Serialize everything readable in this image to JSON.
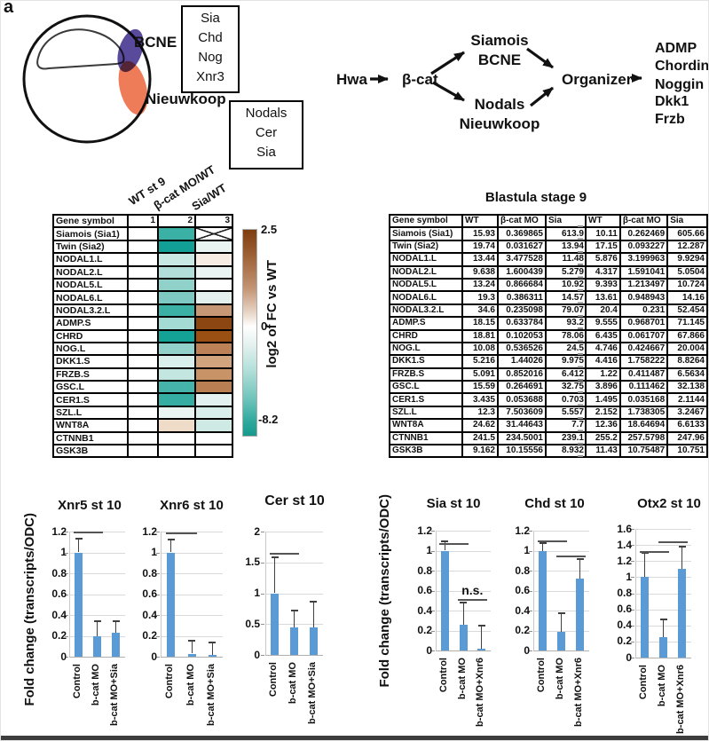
{
  "panel_label": "a",
  "embryo": {
    "bcne_label": "BCNE",
    "nieuwkoop_label": "Nieuwkoop",
    "bcne_box": [
      "Sia",
      "Chd",
      "Nog",
      "Xnr3"
    ],
    "nieuwkoop_box": [
      "Nodals",
      "Cer",
      "Sia"
    ],
    "colors": {
      "bcne": "#5a4a9c",
      "nieuwkoop": "#ee7c59"
    }
  },
  "pathway": {
    "hwa": "Hwa",
    "bcat": "β-cat",
    "siamois_line1": "Siamois",
    "siamois_line2": "BCNE",
    "nodals_line1": "Nodals",
    "nodals_line2": "Nieuwkoop",
    "organizer": "Organizer",
    "outputs": [
      "ADMP",
      "Chordin",
      "Noggin",
      "Dkk1",
      "Frzb"
    ]
  },
  "heatmap": {
    "rotated_headers": [
      "WT st 9",
      "β-cat MO/WT",
      "Sia/WT"
    ],
    "header_gene": "Gene symbol",
    "header_cols": [
      "1",
      "2",
      "3"
    ],
    "legend": {
      "max": "2.5",
      "mid": "0",
      "min": "-8.2",
      "label": "log2 of FC vs WT"
    },
    "rows": [
      {
        "gene": "Siamois (Sia1)",
        "c2": "#3bb0a5",
        "c3": "crossed"
      },
      {
        "gene": "Twin (Sia2)",
        "c2": "#12a096",
        "c3": "#e8f4f1"
      },
      {
        "gene": "NODAL1.L",
        "c2": "#c8e8e4",
        "c3": "#f6ece4"
      },
      {
        "gene": "NODAL2.L",
        "c2": "#b2ded9",
        "c3": "#e9f3f1"
      },
      {
        "gene": "NODAL5.L",
        "c2": "#90d1c9",
        "c3": "#ffffff"
      },
      {
        "gene": "NODAL6.L",
        "c2": "#7ec9c1",
        "c3": "#e3f0ee"
      },
      {
        "gene": "NODAL3.2.L",
        "c2": "#3bb0a5",
        "c3": "#c69875"
      },
      {
        "gene": "ADMP.S",
        "c2": "#a3dad3",
        "c3": "#8c4611"
      },
      {
        "gene": "CHRD",
        "c2": "#15a296",
        "c3": "#9a4f13"
      },
      {
        "gene": "NOG.L",
        "c2": "#92d1ca",
        "c3": "#bd8157"
      },
      {
        "gene": "DKK1.S",
        "c2": "#d9efec",
        "c3": "#d2a47d"
      },
      {
        "gene": "FRZB.S",
        "c2": "#c3e6e1",
        "c3": "#c89467"
      },
      {
        "gene": "GSC.L",
        "c2": "#45b3a9",
        "c3": "#b97f52"
      },
      {
        "gene": "CER1.S",
        "c2": "#35ada2",
        "c3": "#e2f1ef"
      },
      {
        "gene": "SZL.L",
        "c2": "#eaf5f3",
        "c3": "#d9eeea"
      },
      {
        "gene": "WNT8A",
        "c2": "#eedbc8",
        "c3": "#cfe9e5"
      },
      {
        "gene": "CTNNB1",
        "c2": "#ffffff",
        "c3": "#ffffff"
      },
      {
        "gene": "GSK3B",
        "c2": "#ffffff",
        "c3": "#ffffff"
      }
    ]
  },
  "expression_table": {
    "title": "Blastula stage 9",
    "gene_header": "Gene symbol",
    "col_headers": [
      "WT",
      "β-cat MO",
      "Sia"
    ],
    "rows": [
      {
        "gene": "Siamois (Sia1)",
        "a": [
          "15.93",
          "0.369865",
          "613.9"
        ],
        "b": [
          "10.11",
          "0.262469",
          "605.66"
        ]
      },
      {
        "gene": "Twin (Sia2)",
        "a": [
          "19.74",
          "0.031627",
          "13.94"
        ],
        "b": [
          "17.15",
          "0.093227",
          "12.287"
        ]
      },
      {
        "gene": "NODAL1.L",
        "a": [
          "13.44",
          "3.477528",
          "11.48"
        ],
        "b": [
          "5.876",
          "3.199963",
          "9.9294"
        ]
      },
      {
        "gene": "NODAL2.L",
        "a": [
          "9.638",
          "1.600439",
          "5.279"
        ],
        "b": [
          "4.317",
          "1.591041",
          "5.0504"
        ]
      },
      {
        "gene": "NODAL5.L",
        "a": [
          "13.24",
          "0.866684",
          "10.92"
        ],
        "b": [
          "9.393",
          "1.213497",
          "10.724"
        ]
      },
      {
        "gene": "NODAL6.L",
        "a": [
          "19.3",
          "0.386311",
          "14.57"
        ],
        "b": [
          "13.61",
          "0.948943",
          "14.16"
        ]
      },
      {
        "gene": "NODAL3.2.L",
        "a": [
          "34.6",
          "0.235098",
          "79.07"
        ],
        "b": [
          "20.4",
          "0.231",
          "52.454"
        ]
      },
      {
        "gene": "ADMP.S",
        "a": [
          "18.15",
          "0.633784",
          "93.2"
        ],
        "b": [
          "9.555",
          "0.968701",
          "71.145"
        ]
      },
      {
        "gene": "CHRD",
        "a": [
          "18.81",
          "0.102053",
          "78.06"
        ],
        "b": [
          "6.435",
          "0.061707",
          "67.866"
        ]
      },
      {
        "gene": "NOG.L",
        "a": [
          "10.08",
          "0.536526",
          "24.5"
        ],
        "b": [
          "4.746",
          "0.424667",
          "20.004"
        ]
      },
      {
        "gene": "DKK1.S",
        "a": [
          "5.216",
          "1.44026",
          "9.975"
        ],
        "b": [
          "4.416",
          "1.758222",
          "8.8264"
        ]
      },
      {
        "gene": "FRZB.S",
        "a": [
          "5.091",
          "0.852016",
          "6.412"
        ],
        "b": [
          "1.22",
          "0.411487",
          "6.5634"
        ]
      },
      {
        "gene": "GSC.L",
        "a": [
          "15.59",
          "0.264691",
          "32.75"
        ],
        "b": [
          "3.896",
          "0.111462",
          "32.138"
        ]
      },
      {
        "gene": "CER1.S",
        "a": [
          "3.435",
          "0.053688",
          "0.703"
        ],
        "b": [
          "1.495",
          "0.035168",
          "2.1144"
        ]
      },
      {
        "gene": "SZL.L",
        "a": [
          "12.3",
          "7.503609",
          "5.557"
        ],
        "b": [
          "2.152",
          "1.738305",
          "3.2467"
        ]
      },
      {
        "gene": "WNT8A",
        "a": [
          "24.62",
          "31.44643",
          "7.7"
        ],
        "b": [
          "12.36",
          "18.64694",
          "6.6133"
        ]
      },
      {
        "gene": "CTNNB1",
        "a": [
          "241.5",
          "234.5001",
          "239.1"
        ],
        "b": [
          "255.2",
          "257.5798",
          "247.96"
        ]
      },
      {
        "gene": "GSK3B",
        "a": [
          "9.162",
          "10.15556",
          "8.932"
        ],
        "b": [
          "11.43",
          "10.75487",
          "10.751"
        ]
      }
    ]
  },
  "charts": {
    "ylabel": "Fold change (transcripts/ODC)",
    "bar_color": "#5B9BD5"
  },
  "chart_data": [
    {
      "type": "bar",
      "title": "Xnr5 st 10",
      "categories": [
        "Control",
        "b-cat MO",
        "b-cat MO+Sia"
      ],
      "values": [
        1.0,
        0.2,
        0.23
      ],
      "errors": [
        0.13,
        0.14,
        0.11
      ],
      "ylim": [
        0,
        1.2
      ],
      "yticks": [
        0,
        0.2,
        0.4,
        0.6,
        0.8,
        1,
        1.2
      ],
      "ylabel": "Fold change (transcripts/ODC)",
      "sig": [
        {
          "from": 0,
          "to": 1,
          "y": 1.2,
          "label": ""
        }
      ]
    },
    {
      "type": "bar",
      "title": "Xnr6 st 10",
      "categories": [
        "Control",
        "b-cat MO",
        "b-cat MO+Sia"
      ],
      "values": [
        1.0,
        0.03,
        0.02
      ],
      "errors": [
        0.12,
        0.12,
        0.12
      ],
      "ylim": [
        0,
        1.2
      ],
      "yticks": [
        0,
        0.2,
        0.4,
        0.6,
        0.8,
        1,
        1.2
      ],
      "ylabel": "Fold change (transcripts/ODC)",
      "sig": [
        {
          "from": 0,
          "to": 1,
          "y": 1.19,
          "label": ""
        }
      ]
    },
    {
      "type": "bar",
      "title": "Cer st 10",
      "categories": [
        "Control",
        "b-cat MO",
        "b-cat MO+Sia"
      ],
      "values": [
        1.0,
        0.45,
        0.45
      ],
      "errors": [
        0.58,
        0.27,
        0.42
      ],
      "ylim": [
        0,
        2
      ],
      "yticks": [
        0,
        0.5,
        1,
        1.5,
        2
      ],
      "ylabel": "Fold change (transcripts/ODC)",
      "sig": [
        {
          "from": 0,
          "to": 1,
          "y": 1.65,
          "label": ""
        }
      ]
    },
    {
      "type": "bar",
      "title": "Sia st 10",
      "categories": [
        "Control",
        "b-cat MO",
        "b-cat MO+Xnr6"
      ],
      "values": [
        1.0,
        0.26,
        0.02
      ],
      "errors": [
        0.09,
        0.22,
        0.23
      ],
      "ylim": [
        0,
        1.2
      ],
      "yticks": [
        0,
        0.2,
        0.4,
        0.6,
        0.8,
        1,
        1.2
      ],
      "ylabel": "Fold change (transcripts/ODC)",
      "sig": [
        {
          "from": 0,
          "to": 1,
          "y": 1.08,
          "label": ""
        },
        {
          "from": 1,
          "to": 2,
          "y": 0.52,
          "label": "n.s."
        }
      ]
    },
    {
      "type": "bar",
      "title": "Chd st 10",
      "categories": [
        "Control",
        "b-cat MO",
        "b-cat MO+Xnr6"
      ],
      "values": [
        1.0,
        0.19,
        0.72
      ],
      "errors": [
        0.08,
        0.18,
        0.2
      ],
      "ylim": [
        0,
        1.2
      ],
      "yticks": [
        0,
        0.2,
        0.4,
        0.6,
        0.8,
        1,
        1.2
      ],
      "ylabel": "Fold change (transcripts/ODC)",
      "sig": [
        {
          "from": 0,
          "to": 1,
          "y": 1.1,
          "label": ""
        },
        {
          "from": 1,
          "to": 2,
          "y": 0.95,
          "label": ""
        }
      ]
    },
    {
      "type": "bar",
      "title": "Otx2 st 10",
      "categories": [
        "Control",
        "b-cat MO",
        "b-cat MO+Xnr6"
      ],
      "values": [
        1.0,
        0.25,
        1.1
      ],
      "errors": [
        0.3,
        0.22,
        0.28
      ],
      "ylim": [
        0,
        1.6
      ],
      "yticks": [
        0,
        0.2,
        0.4,
        0.6,
        0.8,
        1,
        1.2,
        1.4,
        1.6
      ],
      "ylabel": "Fold change (transcripts/ODC)",
      "sig": [
        {
          "from": 0,
          "to": 1,
          "y": 1.32,
          "label": ""
        },
        {
          "from": 1,
          "to": 2,
          "y": 1.45,
          "label": ""
        }
      ]
    }
  ]
}
